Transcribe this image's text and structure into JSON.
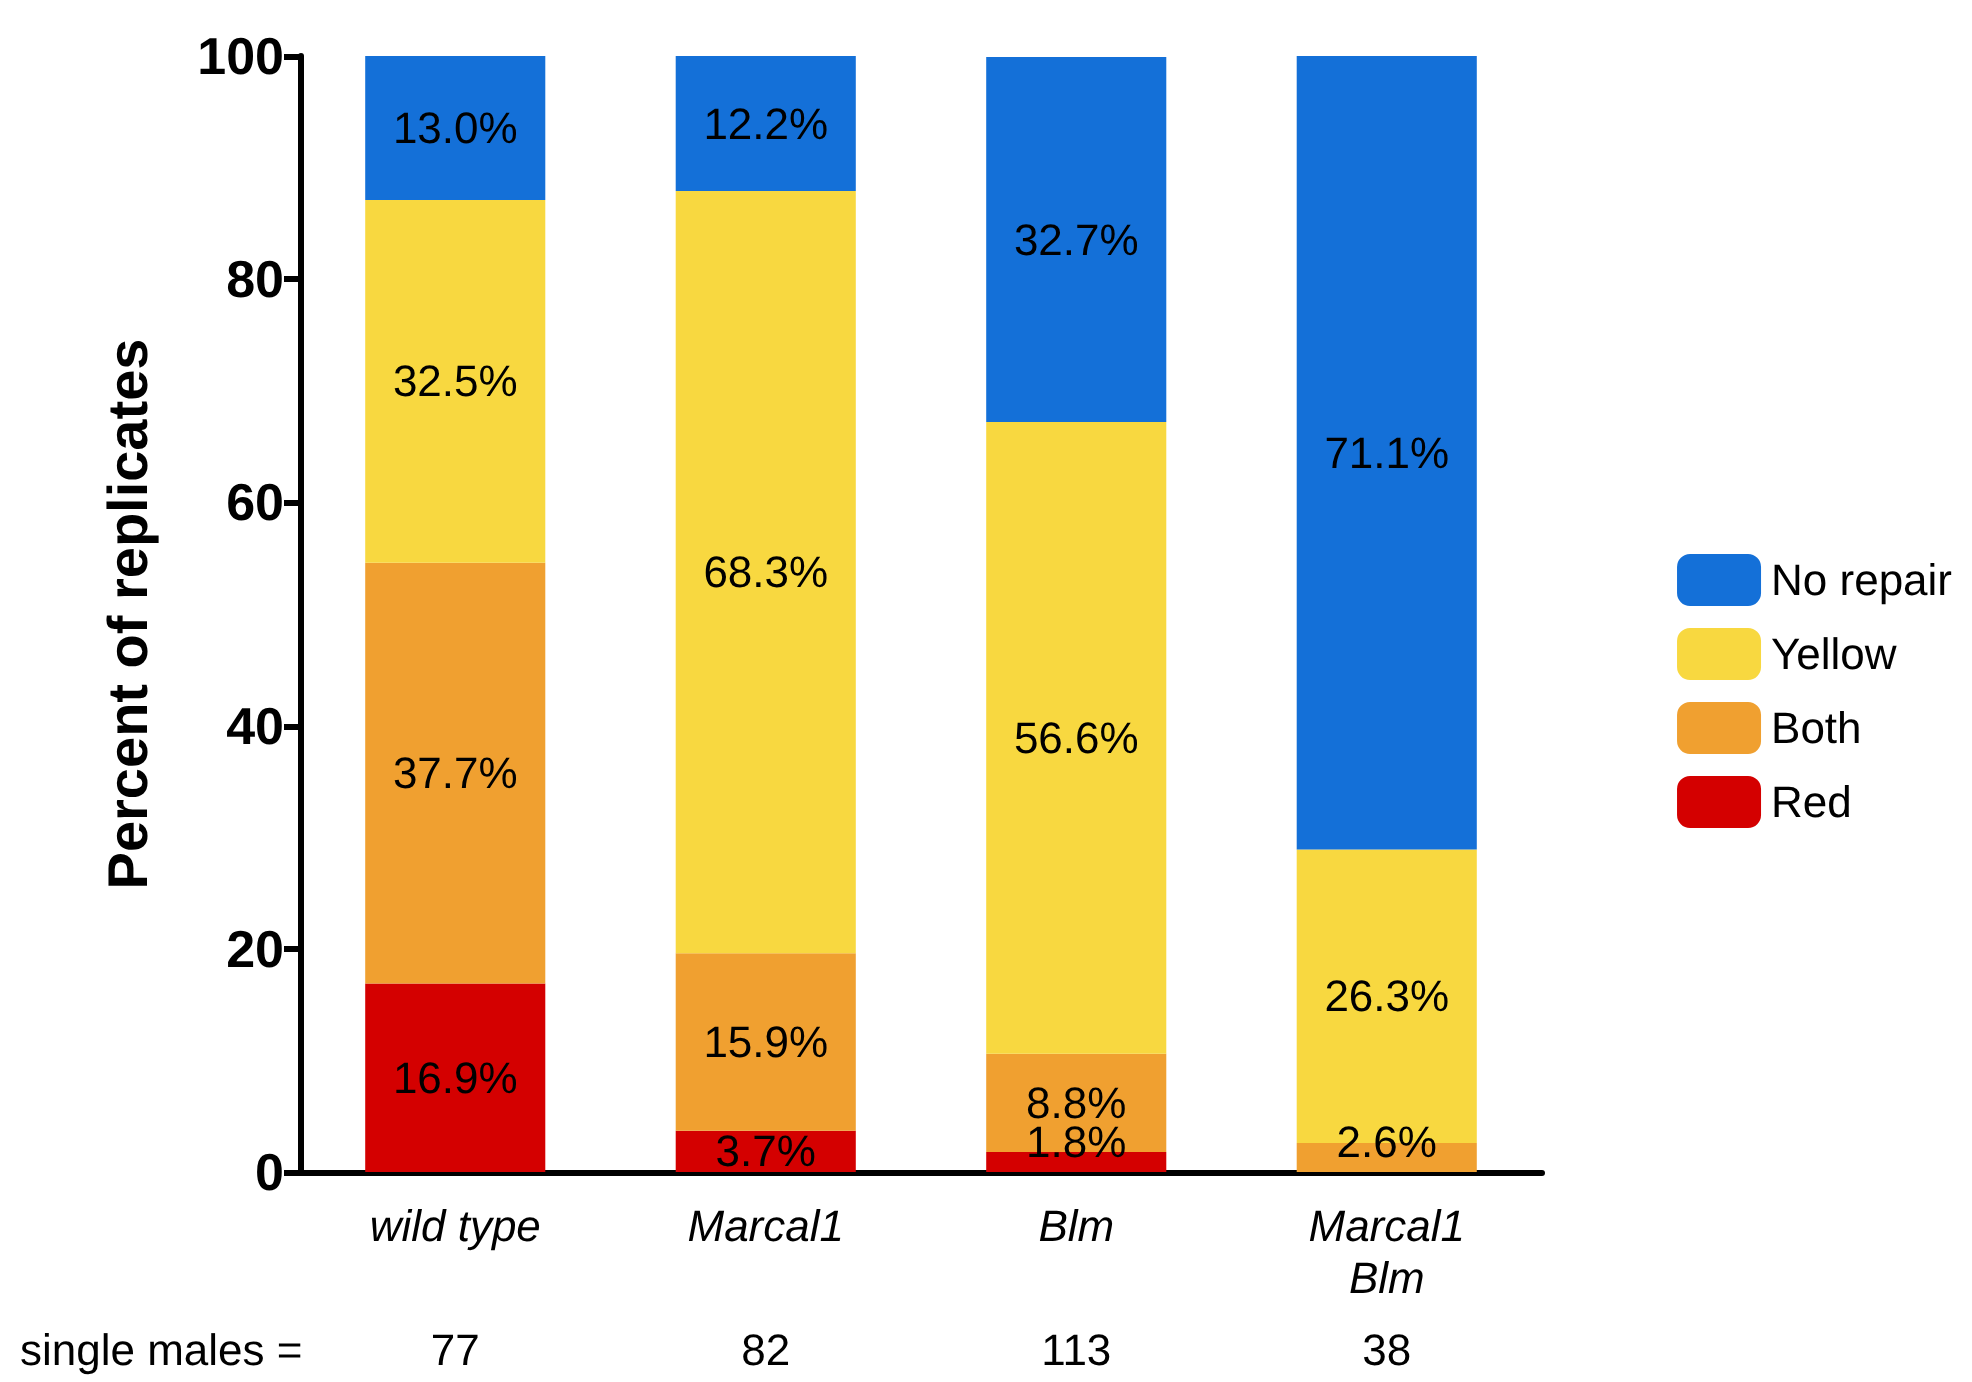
{
  "chart_data": {
    "type": "bar",
    "stacked": true,
    "ylabel": "Percent of replicates",
    "categories": [
      "wild type",
      "Marcal1",
      "Blm",
      "Marcal1\nBlm"
    ],
    "series": [
      {
        "name": "Red",
        "color": "#d40000",
        "values": [
          16.9,
          3.7,
          1.8,
          null
        ],
        "value_labels": [
          "16.9%",
          "3.7%",
          "1.8%",
          null
        ]
      },
      {
        "name": "Both",
        "color": "#f0a030",
        "values": [
          37.7,
          15.9,
          8.8,
          2.6
        ],
        "value_labels": [
          "37.7%",
          "15.9%",
          "8.8%",
          "2.6%"
        ]
      },
      {
        "name": "Yellow",
        "color": "#f8d840",
        "values": [
          32.5,
          68.3,
          56.6,
          26.3
        ],
        "value_labels": [
          "32.5%",
          "68.3%",
          "56.6%",
          "26.3%"
        ]
      },
      {
        "name": "No repair",
        "color": "#1470d8",
        "values": [
          13.0,
          12.2,
          32.7,
          71.1
        ],
        "value_labels": [
          "13.0%",
          "12.2%",
          "32.7%",
          "71.1%"
        ]
      }
    ],
    "ylim": [
      0,
      100
    ],
    "yticks": [
      0,
      20,
      40,
      60,
      80,
      100
    ],
    "grid": false,
    "legend": "right",
    "annotations": [
      "single males =",
      "77",
      "82",
      "113",
      "38"
    ]
  }
}
